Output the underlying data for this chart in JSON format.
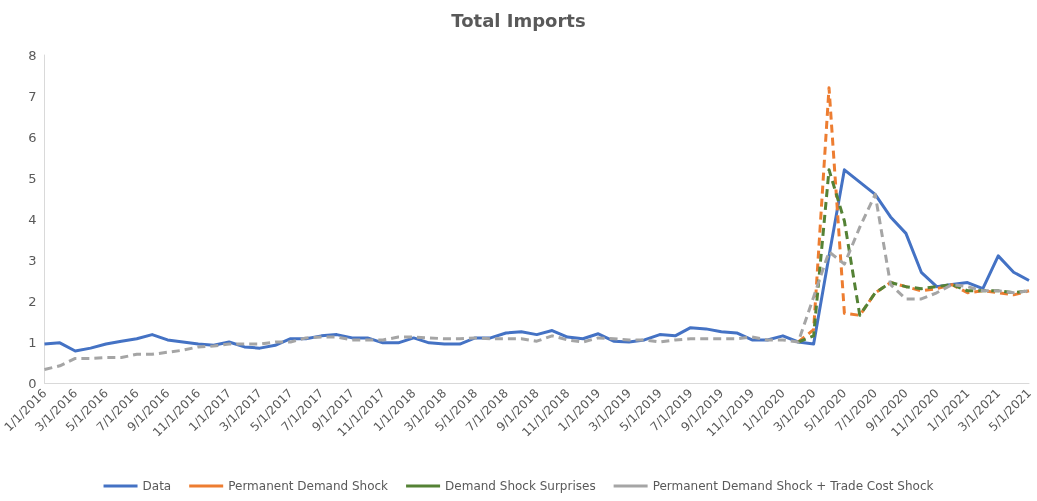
{
  "chart_data": {
    "type": "line",
    "title": "Total Imports",
    "categories": [
      "1/1/2016",
      null,
      "3/1/2016",
      null,
      "5/1/2016",
      null,
      "7/1/2016",
      null,
      "9/1/2016",
      null,
      "11/1/2016",
      null,
      "1/1/2017",
      null,
      "3/1/2017",
      null,
      "5/1/2017",
      null,
      "7/1/2017",
      null,
      "9/1/2017",
      null,
      "11/1/2017",
      null,
      "1/1/2018",
      null,
      "3/1/2018",
      null,
      "5/1/2018",
      null,
      "7/1/2018",
      null,
      "9/1/2018",
      null,
      "11/1/2018",
      null,
      "1/1/2019",
      null,
      "3/1/2019",
      null,
      "5/1/2019",
      null,
      "7/1/2019",
      null,
      "9/1/2019",
      null,
      "11/1/2019",
      null,
      "1/1/2020",
      null,
      "3/1/2020",
      null,
      "5/1/2020",
      null,
      "7/1/2020",
      null,
      "9/1/2020",
      null,
      "11/1/2020",
      null,
      "1/1/2021",
      null,
      "3/1/2021",
      null,
      "5/1/2021"
    ],
    "series": [
      {
        "name": "Data",
        "color": "#4472c4",
        "line_style": "solid",
        "values": [
          0.95,
          0.98,
          0.78,
          0.85,
          0.95,
          1.02,
          1.08,
          1.18,
          1.05,
          1.0,
          0.95,
          0.92,
          1.0,
          0.88,
          0.85,
          0.92,
          1.08,
          1.08,
          1.15,
          1.18,
          1.1,
          1.1,
          0.98,
          0.98,
          1.1,
          0.98,
          0.95,
          0.95,
          1.1,
          1.1,
          1.22,
          1.25,
          1.18,
          1.28,
          1.12,
          1.08,
          1.2,
          1.02,
          1.0,
          1.05,
          1.18,
          1.15,
          1.35,
          1.32,
          1.25,
          1.22,
          1.05,
          1.05,
          1.15,
          1.0,
          0.95,
          3.1,
          5.2,
          4.9,
          4.6,
          4.05,
          3.65,
          2.7,
          2.35,
          2.4,
          2.45,
          2.3,
          3.1,
          2.7,
          2.5
        ]
      },
      {
        "name": "Permanent Demand Shock",
        "color": "#ed7d31",
        "line_style": "dashed",
        "values": [
          null,
          null,
          null,
          null,
          null,
          null,
          null,
          null,
          null,
          null,
          null,
          null,
          null,
          null,
          null,
          null,
          null,
          null,
          null,
          null,
          null,
          null,
          null,
          null,
          null,
          null,
          null,
          null,
          null,
          null,
          null,
          null,
          null,
          null,
          null,
          null,
          null,
          null,
          null,
          null,
          null,
          null,
          null,
          null,
          null,
          null,
          null,
          null,
          null,
          1.0,
          1.3,
          7.2,
          1.7,
          1.65,
          2.2,
          2.45,
          2.35,
          2.25,
          2.3,
          2.4,
          2.2,
          2.25,
          2.2,
          2.15,
          2.25
        ]
      },
      {
        "name": "Demand Shock Surprises",
        "color": "#548235",
        "line_style": "dashed",
        "values": [
          null,
          null,
          null,
          null,
          null,
          null,
          null,
          null,
          null,
          null,
          null,
          null,
          null,
          null,
          null,
          null,
          null,
          null,
          null,
          null,
          null,
          null,
          null,
          null,
          null,
          null,
          null,
          null,
          null,
          null,
          null,
          null,
          null,
          null,
          null,
          null,
          null,
          null,
          null,
          null,
          null,
          null,
          null,
          null,
          null,
          null,
          null,
          null,
          null,
          1.0,
          1.15,
          5.2,
          3.95,
          1.65,
          2.2,
          2.45,
          2.35,
          2.3,
          2.35,
          2.4,
          2.25,
          2.25,
          2.25,
          2.2,
          2.25
        ]
      },
      {
        "name": "Permanent Demand Shock + Trade Cost Shock",
        "color": "#a5a5a5",
        "line_style": "dashed",
        "values": [
          0.33,
          0.42,
          0.6,
          0.6,
          0.62,
          0.62,
          0.7,
          0.7,
          0.75,
          0.8,
          0.88,
          0.9,
          0.95,
          0.95,
          0.95,
          1.0,
          1.0,
          1.1,
          1.12,
          1.12,
          1.05,
          1.05,
          1.05,
          1.12,
          1.12,
          1.1,
          1.08,
          1.08,
          1.1,
          1.08,
          1.08,
          1.08,
          1.02,
          1.15,
          1.05,
          1.0,
          1.1,
          1.08,
          1.05,
          1.05,
          1.0,
          1.05,
          1.08,
          1.08,
          1.08,
          1.08,
          1.12,
          1.05,
          1.05,
          1.0,
          2.1,
          3.2,
          2.9,
          3.8,
          4.6,
          2.4,
          2.05,
          2.05,
          2.2,
          2.4,
          2.35,
          2.25,
          2.25,
          2.2,
          2.25
        ]
      }
    ],
    "ylim": [
      0,
      8
    ],
    "yticks": [
      0,
      1,
      2,
      3,
      4,
      5,
      6,
      7,
      8
    ],
    "grid": false,
    "legend": "bottom",
    "marker": "none"
  }
}
